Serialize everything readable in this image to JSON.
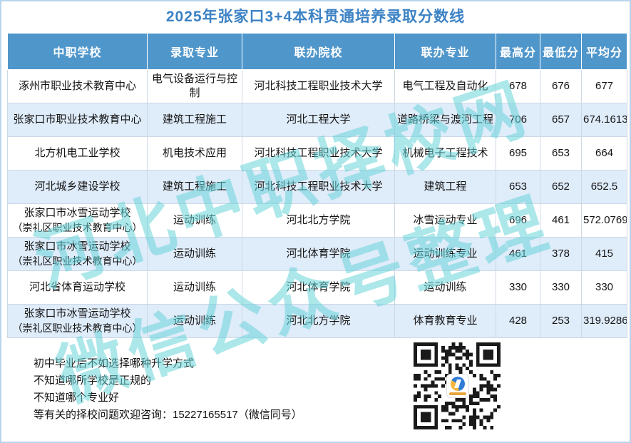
{
  "page": {
    "title": "2025年张家口3+4本科贯通培养录取分数线"
  },
  "table": {
    "columns": [
      "中职学校",
      "录取专业",
      "联办院校",
      "联办专业",
      "最高分",
      "最低分",
      "平均分"
    ],
    "rows": [
      {
        "school": "涿州市职业技术教育中心",
        "school_note": "",
        "major": "电气设备运行与控制",
        "college": "河北科技工程职业技术大学",
        "joint_major": "电气工程及自动化",
        "max": "678",
        "min": "676",
        "avg": "677"
      },
      {
        "school": "张家口市职业技术教育中心",
        "school_note": "",
        "major": "建筑工程施工",
        "college": "河北工程大学",
        "joint_major": "道路桥梁与渡河工程",
        "max": "706",
        "min": "657",
        "avg": "674.1613"
      },
      {
        "school": "北方机电工业学校",
        "school_note": "",
        "major": "机电技术应用",
        "college": "河北科技工程职业技术大学",
        "joint_major": "机械电子工程技术",
        "max": "695",
        "min": "653",
        "avg": "664"
      },
      {
        "school": "河北城乡建设学校",
        "school_note": "",
        "major": "建筑工程施工",
        "college": "河北科技工程职业技术大学",
        "joint_major": "建筑工程",
        "max": "653",
        "min": "652",
        "avg": "652.5"
      },
      {
        "school": "张家口市冰雪运动学校",
        "school_note": "（崇礼区职业技术教育中心）",
        "major": "运动训练",
        "college": "河北北方学院",
        "joint_major": "冰雪运动专业",
        "max": "696",
        "min": "461",
        "avg": "572.0769"
      },
      {
        "school": "张家口市冰雪运动学校",
        "school_note": "（崇礼区职业技术教育中心）",
        "major": "运动训练",
        "college": "河北体育学院",
        "joint_major": "运动训练专业",
        "max": "461",
        "min": "378",
        "avg": "415"
      },
      {
        "school": "河北省体育运动学校",
        "school_note": "",
        "major": "运动训练",
        "college": "河北体育学院",
        "joint_major": "运动训练",
        "max": "330",
        "min": "330",
        "avg": "330"
      },
      {
        "school": "张家口市冰雪运动学校",
        "school_note": "（崇礼区职业技术教育中心）",
        "major": "运动训练",
        "college": "河北北方学院",
        "joint_major": "体育教育专业",
        "max": "428",
        "min": "253",
        "avg": "319.9286"
      }
    ]
  },
  "watermark": {
    "line1": "河北中职择校网",
    "line2": "微信公众号整理",
    "color": "#68d4d8"
  },
  "footer": {
    "lines": [
      "初中毕业后不如选择哪种升学方式",
      "不知道哪所学校是正规的",
      "不知道哪个专业好",
      "等有关的择校问题欢迎咨询：15227165517（微信同号）"
    ]
  },
  "icons": {
    "qr": "qr-code",
    "qr_logo": "brand-logo"
  },
  "colors": {
    "title_text": "#3c82c4",
    "header_bg": "#4f96cb",
    "header_text": "#ffffff",
    "row_alt_bg": "#dfecfa",
    "grid_border": "#cdd8e6",
    "page_border": "#b9d4ec",
    "watermark": "#68d4d8"
  }
}
